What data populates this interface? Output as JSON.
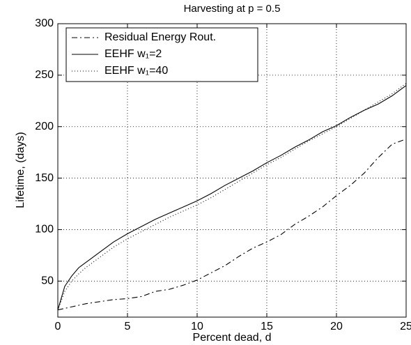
{
  "chart_data": {
    "type": "line",
    "title": "Harvesting at p = 0.5",
    "xlabel": "Percent dead, d",
    "ylabel": "Lifetime, (days)",
    "x": [
      0,
      0.5,
      1,
      1.5,
      2,
      3,
      4,
      5,
      6,
      7,
      8,
      9,
      10,
      11,
      12,
      13,
      14,
      15,
      16,
      17,
      18,
      19,
      20,
      21,
      22,
      23,
      24,
      25
    ],
    "series": [
      {
        "name": "Residual Energy Rout.",
        "color": "#000000",
        "dash": "dashdot",
        "values": [
          22,
          23.5,
          25,
          26.5,
          28,
          30,
          32,
          33,
          35,
          40,
          42,
          46,
          51,
          58,
          65,
          74,
          82,
          88,
          95,
          105,
          113,
          122,
          133,
          143,
          155,
          170,
          183,
          188
        ]
      },
      {
        "name": "EEHF w₁=2",
        "color": "#000000",
        "dash": "solid",
        "values": [
          22,
          45,
          55,
          63,
          68,
          78,
          88,
          96,
          103,
          110,
          116,
          122,
          128,
          135,
          143,
          150,
          157,
          165,
          172,
          180,
          187,
          195,
          201,
          209,
          216,
          222,
          230,
          240
        ]
      },
      {
        "name": "EEHF w₁=40",
        "color": "#000000",
        "dash": "dotted",
        "values": [
          22,
          40,
          50,
          57,
          63,
          73,
          83,
          91,
          98,
          105,
          112,
          118,
          124,
          131,
          139,
          147,
          155,
          163,
          170,
          178,
          186,
          193,
          200,
          208,
          216,
          224,
          232,
          242
        ]
      }
    ],
    "xlim": [
      0,
      25
    ],
    "xticks": [
      0,
      5,
      10,
      15,
      20,
      25
    ],
    "ylim": [
      15,
      300
    ],
    "yticks": [
      50,
      100,
      150,
      200,
      250,
      300
    ],
    "grid": true,
    "legend": "upper left"
  }
}
